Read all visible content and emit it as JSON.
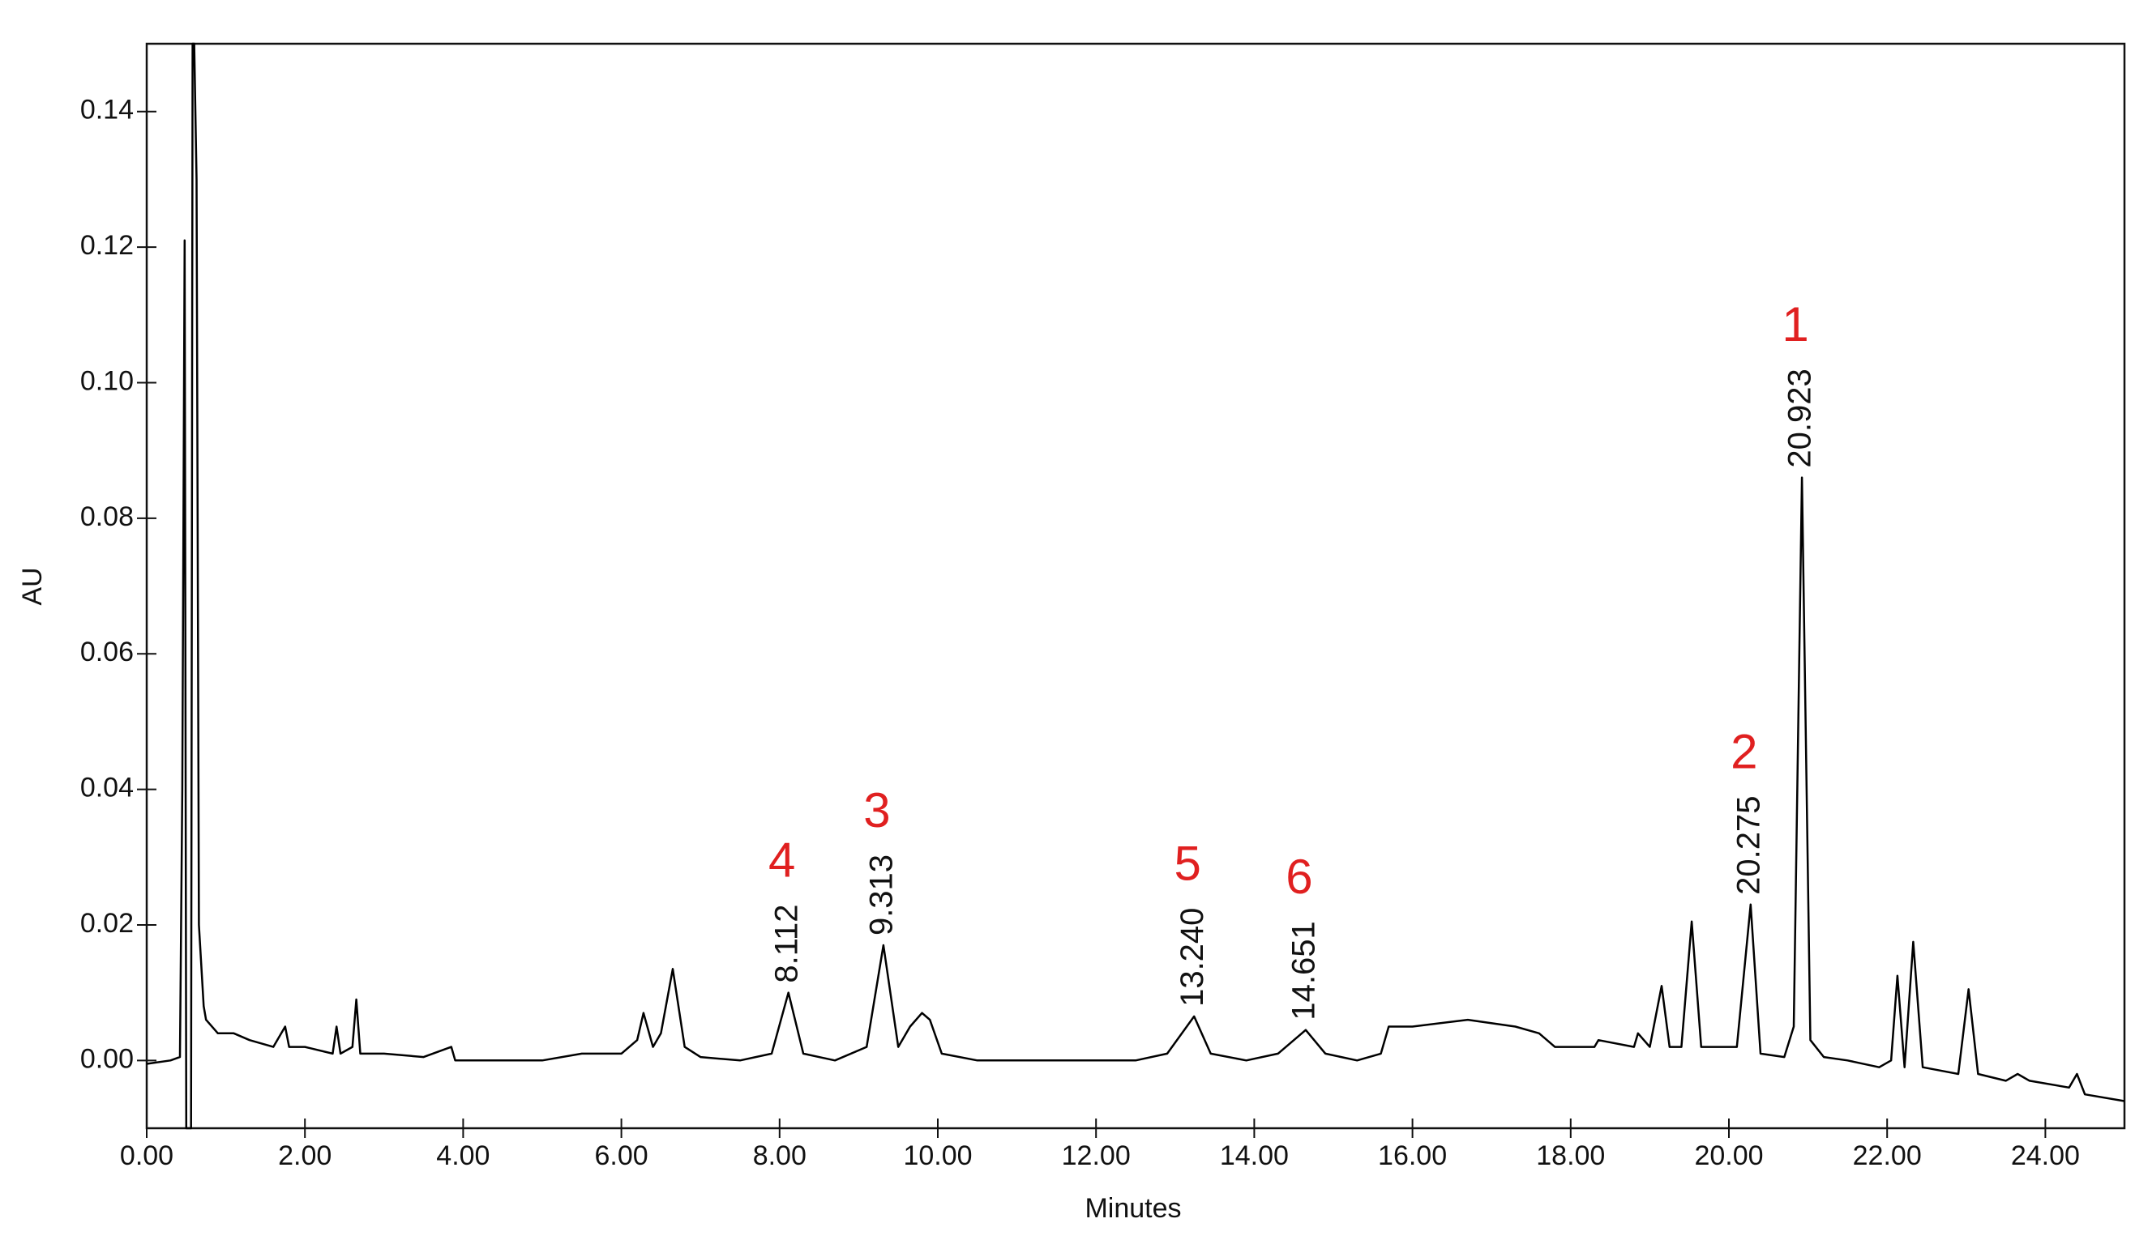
{
  "chart_data": {
    "type": "line",
    "x_label": "Minutes",
    "y_label": "AU",
    "xlim": [
      0,
      25
    ],
    "ylim": [
      -0.01,
      0.15
    ],
    "xticks": [
      {
        "value": 0,
        "label": "0.00"
      },
      {
        "value": 2,
        "label": "2.00"
      },
      {
        "value": 4,
        "label": "4.00"
      },
      {
        "value": 6,
        "label": "6.00"
      },
      {
        "value": 8,
        "label": "8.00"
      },
      {
        "value": 10,
        "label": "10.00"
      },
      {
        "value": 12,
        "label": "12.00"
      },
      {
        "value": 14,
        "label": "14.00"
      },
      {
        "value": 16,
        "label": "16.00"
      },
      {
        "value": 18,
        "label": "18.00"
      },
      {
        "value": 20,
        "label": "20.00"
      },
      {
        "value": 22,
        "label": "22.00"
      },
      {
        "value": 24,
        "label": "24.00"
      }
    ],
    "yticks": [
      {
        "value": 0,
        "label": "0.00"
      },
      0.02,
      0.04,
      0.06,
      0.08,
      {
        "value": 0.1,
        "label": "0.10"
      },
      0.12,
      0.14
    ],
    "color": "#000000",
    "x": [
      0,
      0.3,
      0.42,
      0.45,
      0.48,
      0.5,
      0.56,
      0.58,
      0.6,
      0.63,
      0.66,
      0.72,
      0.75,
      0.9,
      1.1,
      1.3,
      1.6,
      1.75,
      1.8,
      2.0,
      2.35,
      2.4,
      2.45,
      2.6,
      2.65,
      2.7,
      3.0,
      3.5,
      3.85,
      3.9,
      4.5,
      5.0,
      5.5,
      6.0,
      6.2,
      6.28,
      6.4,
      6.5,
      6.65,
      6.8,
      7.0,
      7.5,
      7.9,
      8.112,
      8.3,
      8.7,
      9.1,
      9.313,
      9.5,
      9.65,
      9.8,
      9.9,
      10.05,
      10.5,
      11.0,
      11.5,
      12.0,
      12.5,
      12.9,
      13.24,
      13.45,
      13.9,
      14.3,
      14.651,
      14.9,
      15.3,
      15.6,
      15.7,
      16.0,
      16.7,
      17.3,
      17.6,
      17.8,
      18.3,
      18.35,
      18.8,
      18.85,
      19.0,
      19.15,
      19.25,
      19.4,
      19.53,
      19.65,
      20.0,
      20.1,
      20.275,
      20.4,
      20.7,
      20.82,
      20.923,
      21.03,
      21.2,
      21.5,
      21.9,
      22.05,
      22.13,
      22.22,
      22.33,
      22.45,
      22.9,
      23.03,
      23.15,
      23.5,
      23.65,
      23.8,
      24.3,
      24.4,
      24.5,
      25.0
    ],
    "values": [
      -0.0005,
      0.0,
      0.0005,
      0.04,
      0.121,
      -0.01,
      -0.01,
      0.15,
      0.15,
      0.13,
      0.02,
      0.008,
      0.006,
      0.004,
      0.004,
      0.003,
      0.002,
      0.005,
      0.002,
      0.002,
      0.001,
      0.005,
      0.001,
      0.002,
      0.009,
      0.001,
      0.001,
      0.0005,
      0.002,
      0.0,
      0.0,
      0.0,
      0.001,
      0.001,
      0.003,
      0.007,
      0.002,
      0.004,
      0.0135,
      0.002,
      0.0005,
      0.0,
      0.001,
      0.01,
      0.001,
      0.0,
      0.002,
      0.017,
      0.002,
      0.005,
      0.007,
      0.006,
      0.001,
      0.0,
      0.0,
      0.0,
      0.0,
      0.0,
      0.001,
      0.0065,
      0.001,
      0.0,
      0.001,
      0.0045,
      0.001,
      0.0,
      0.001,
      0.005,
      0.005,
      0.006,
      0.005,
      0.004,
      0.002,
      0.002,
      0.003,
      0.002,
      0.004,
      0.002,
      0.011,
      0.002,
      0.002,
      0.0205,
      0.002,
      0.002,
      0.002,
      0.023,
      0.001,
      0.0005,
      0.005,
      0.086,
      0.003,
      0.0005,
      0.0,
      -0.001,
      0.0,
      0.0125,
      -0.001,
      0.0175,
      -0.001,
      -0.002,
      0.0105,
      -0.002,
      -0.003,
      -0.002,
      -0.003,
      -0.004,
      -0.002,
      -0.005,
      -0.006
    ],
    "peaks": [
      {
        "label": "4",
        "retention_time": "8.112",
        "x": 8.112,
        "y": 0.01
      },
      {
        "label": "3",
        "retention_time": "9.313",
        "x": 9.313,
        "y": 0.017
      },
      {
        "label": "5",
        "retention_time": "13.240",
        "x": 13.24,
        "y": 0.0065
      },
      {
        "label": "6",
        "retention_time": "14.651",
        "x": 14.651,
        "y": 0.0045
      },
      {
        "label": "2",
        "retention_time": "20.275",
        "x": 20.275,
        "y": 0.023
      },
      {
        "label": "1",
        "retention_time": "20.923",
        "x": 20.923,
        "y": 0.086
      }
    ],
    "peak_label_color": "#e02020"
  }
}
